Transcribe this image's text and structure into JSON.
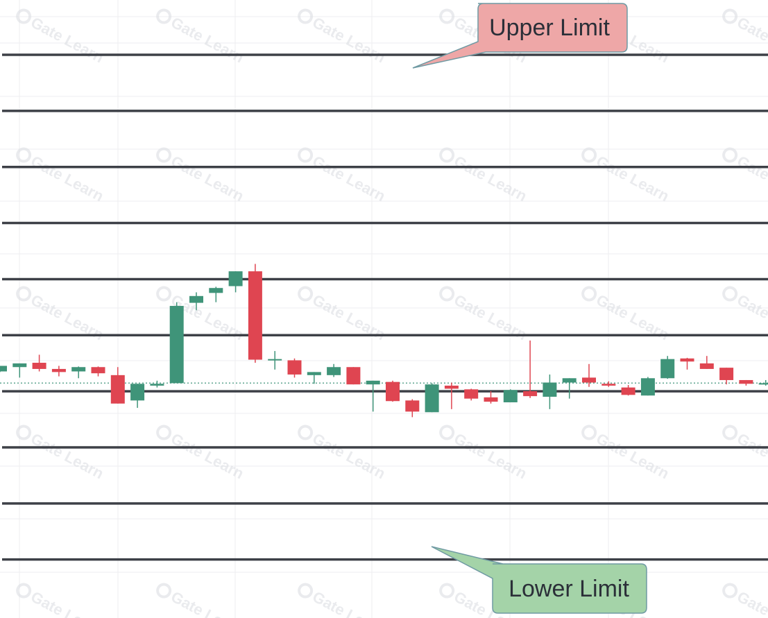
{
  "chart_data": {
    "type": "candlestick",
    "price_range": [
      0,
      100
    ],
    "upper_limit": 91.13,
    "lower_limit": 9.47,
    "grid_levels": [
      91.13,
      82.06,
      72.98,
      63.91,
      54.83,
      45.76,
      36.68,
      27.61,
      18.53,
      9.47
    ],
    "current_price": 38.02,
    "colors": {
      "up": "#3f9479",
      "down": "#df4551",
      "grid_line": "#3d4047",
      "current_line": "#3f9479",
      "upper_callout_fill": "#eea7a7",
      "upper_callout_stroke": "#6f9aa3",
      "lower_callout_fill": "#a4d3a8",
      "lower_callout_stroke": "#6f9aa3",
      "watermark": "#d9dce1"
    },
    "candles": [
      {
        "open": 39.9,
        "high": 40.8,
        "low": 39.8,
        "close": 40.8
      },
      {
        "open": 40.6,
        "high": 41.2,
        "low": 38.9,
        "close": 41.2
      },
      {
        "open": 41.3,
        "high": 42.6,
        "low": 39.9,
        "close": 40.3
      },
      {
        "open": 40.3,
        "high": 40.8,
        "low": 39.1,
        "close": 39.8
      },
      {
        "open": 39.9,
        "high": 40.7,
        "low": 38.8,
        "close": 40.6
      },
      {
        "open": 40.6,
        "high": 40.7,
        "low": 39.1,
        "close": 39.6
      },
      {
        "open": 39.3,
        "high": 40.6,
        "low": 34.7,
        "close": 34.7
      },
      {
        "open": 35.2,
        "high": 37.9,
        "low": 34.0,
        "close": 37.9
      },
      {
        "open": 37.6,
        "high": 38.4,
        "low": 37.3,
        "close": 37.9
      },
      {
        "open": 38.0,
        "high": 51.1,
        "low": 38.0,
        "close": 50.5
      },
      {
        "open": 51.0,
        "high": 52.7,
        "low": 49.8,
        "close": 52.1
      },
      {
        "open": 52.6,
        "high": 53.6,
        "low": 51.1,
        "close": 53.4
      },
      {
        "open": 53.7,
        "high": 56.1,
        "low": 52.7,
        "close": 56.1
      },
      {
        "open": 56.1,
        "high": 57.3,
        "low": 41.3,
        "close": 41.8
      },
      {
        "open": 41.9,
        "high": 43.2,
        "low": 40.2,
        "close": 41.9
      },
      {
        "open": 41.7,
        "high": 42.0,
        "low": 38.9,
        "close": 39.4
      },
      {
        "open": 39.3,
        "high": 39.8,
        "low": 37.9,
        "close": 39.8
      },
      {
        "open": 39.3,
        "high": 41.1,
        "low": 39.0,
        "close": 40.6
      },
      {
        "open": 40.6,
        "high": 40.6,
        "low": 37.8,
        "close": 37.8
      },
      {
        "open": 37.8,
        "high": 38.4,
        "low": 33.4,
        "close": 38.4
      },
      {
        "open": 38.2,
        "high": 38.4,
        "low": 35.0,
        "close": 35.1
      },
      {
        "open": 35.2,
        "high": 35.4,
        "low": 32.5,
        "close": 33.4
      },
      {
        "open": 33.3,
        "high": 38.0,
        "low": 33.3,
        "close": 37.8
      },
      {
        "open": 37.6,
        "high": 38.1,
        "low": 33.8,
        "close": 37.1
      },
      {
        "open": 37.0,
        "high": 37.1,
        "low": 35.2,
        "close": 35.5
      },
      {
        "open": 35.7,
        "high": 36.7,
        "low": 34.7,
        "close": 35.0
      },
      {
        "open": 34.9,
        "high": 37.0,
        "low": 34.9,
        "close": 36.9
      },
      {
        "open": 36.7,
        "high": 44.9,
        "low": 35.6,
        "close": 35.9
      },
      {
        "open": 35.8,
        "high": 39.4,
        "low": 33.8,
        "close": 38.1
      },
      {
        "open": 38.1,
        "high": 38.8,
        "low": 35.5,
        "close": 38.8
      },
      {
        "open": 38.9,
        "high": 41.1,
        "low": 37.4,
        "close": 38.1
      },
      {
        "open": 37.9,
        "high": 38.3,
        "low": 37.4,
        "close": 37.6
      },
      {
        "open": 37.3,
        "high": 37.7,
        "low": 36.0,
        "close": 36.1
      },
      {
        "open": 36.0,
        "high": 39.0,
        "low": 36.0,
        "close": 38.8
      },
      {
        "open": 38.8,
        "high": 42.4,
        "low": 38.7,
        "close": 41.9
      },
      {
        "open": 42.0,
        "high": 42.1,
        "low": 40.2,
        "close": 41.5
      },
      {
        "open": 41.2,
        "high": 42.4,
        "low": 40.3,
        "close": 40.3
      },
      {
        "open": 40.5,
        "high": 40.5,
        "low": 37.8,
        "close": 38.5
      },
      {
        "open": 38.5,
        "high": 38.5,
        "low": 37.6,
        "close": 37.9
      },
      {
        "open": 37.8,
        "high": 38.5,
        "low": 37.6,
        "close": 38.0
      }
    ]
  },
  "callouts": {
    "upper": "Upper Limit",
    "lower": "Lower Limit"
  },
  "watermark": {
    "text": "Gate Learn"
  }
}
